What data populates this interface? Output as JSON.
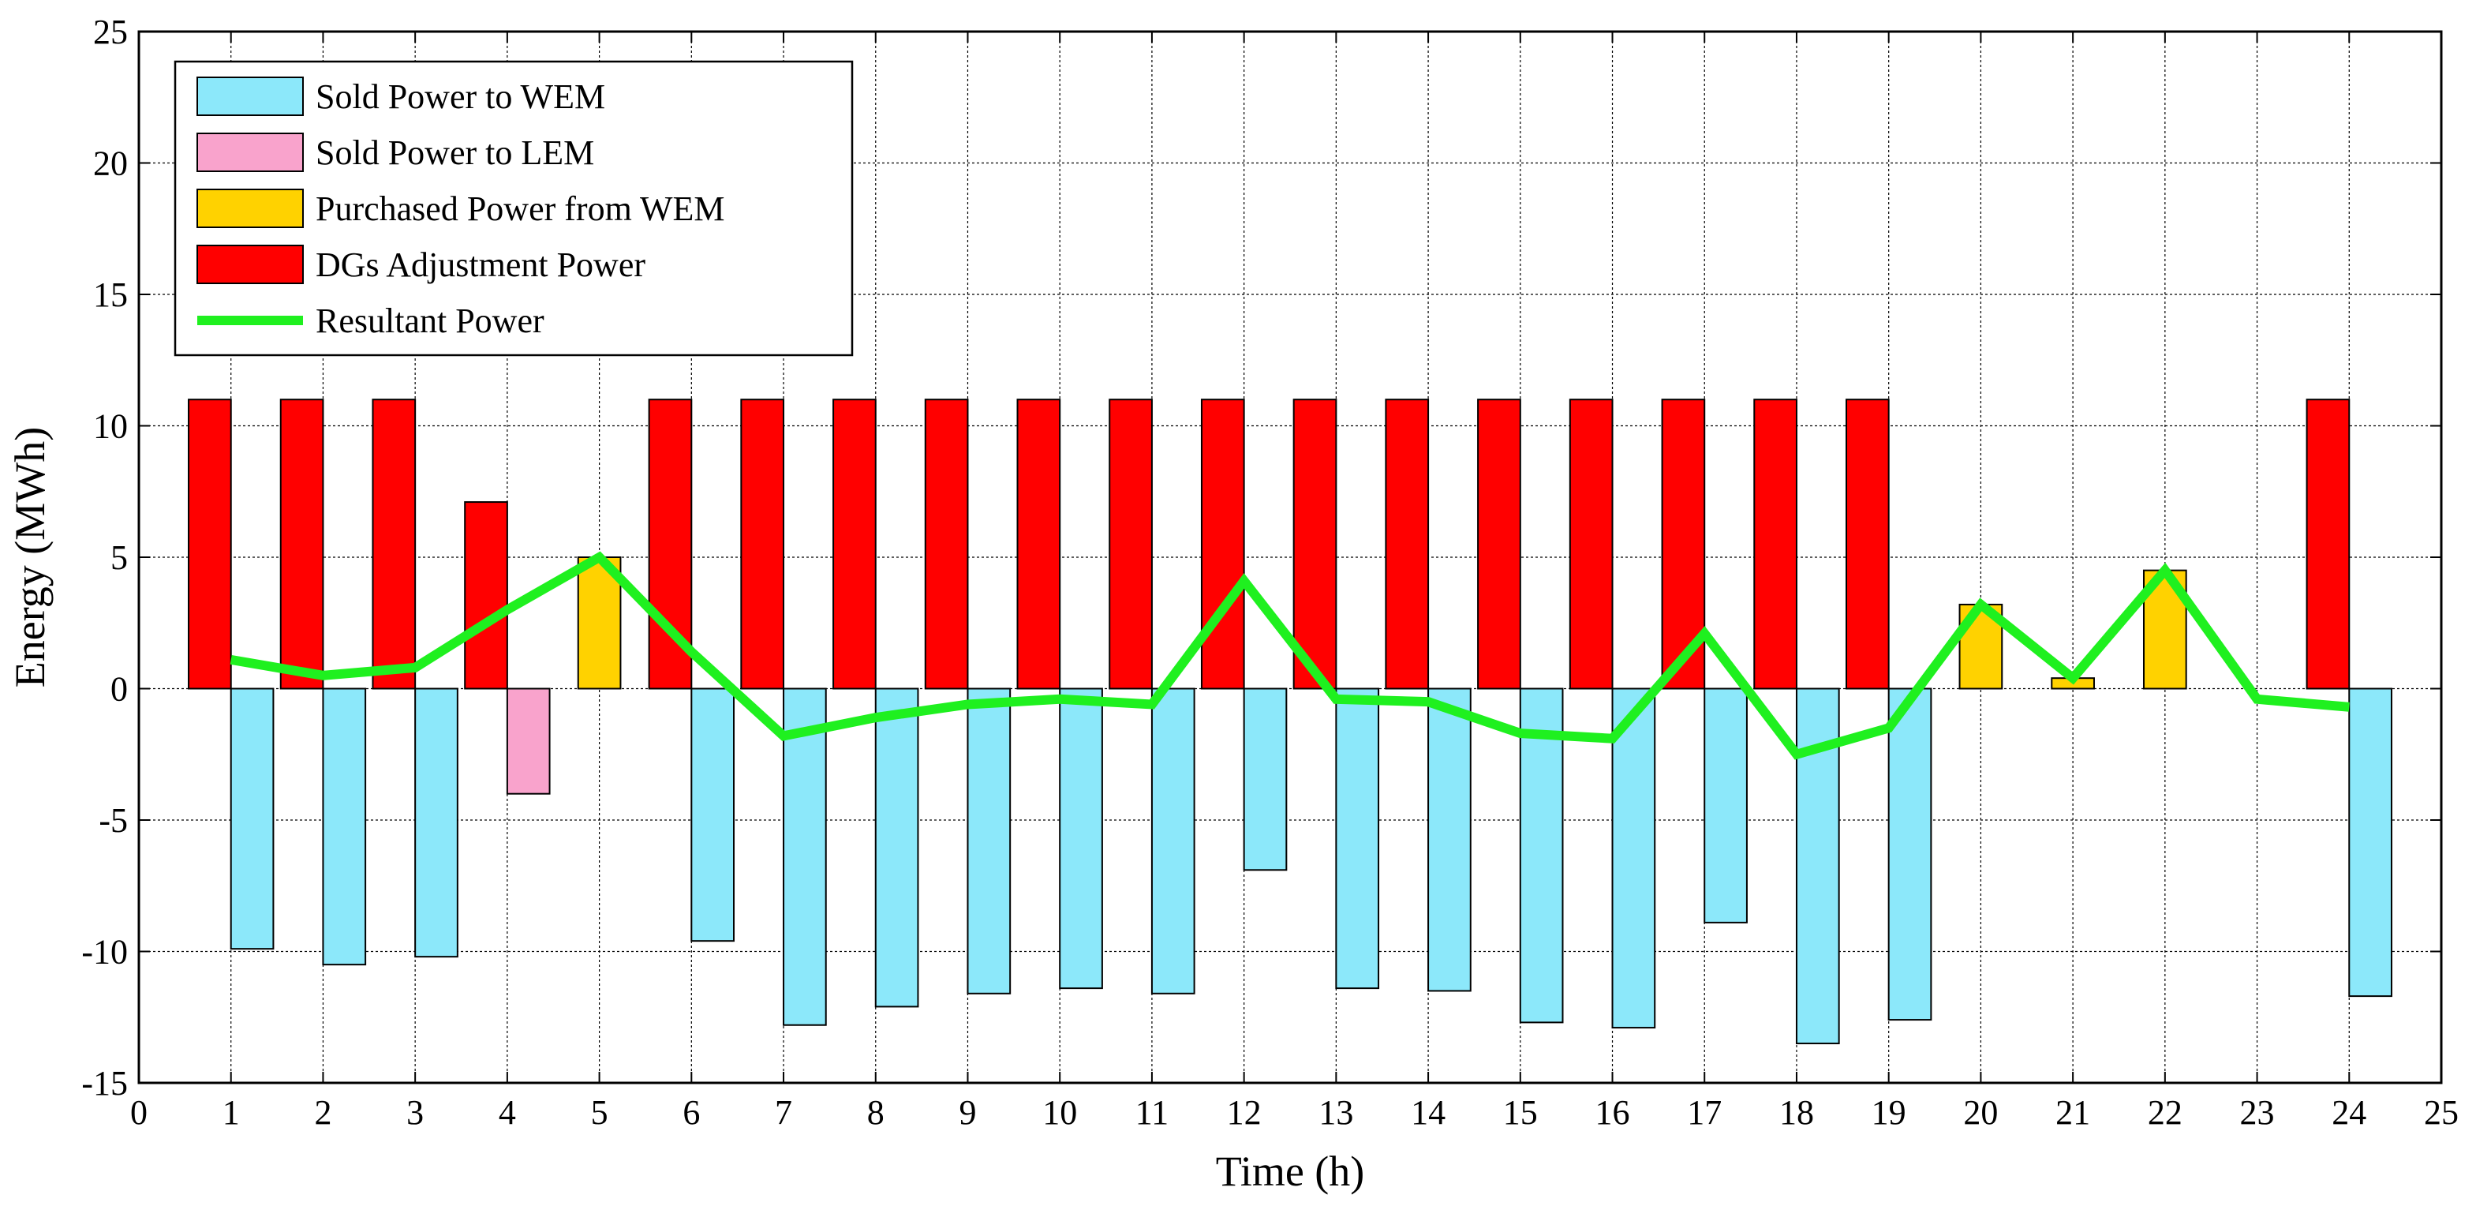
{
  "chart_data": {
    "type": "bar",
    "title": "",
    "xlabel": "Time (h)",
    "ylabel": "Energy (MWh)",
    "xlim": [
      0,
      25
    ],
    "ylim": [
      -15,
      25
    ],
    "xticks": [
      0,
      1,
      2,
      3,
      4,
      5,
      6,
      7,
      8,
      9,
      10,
      11,
      12,
      13,
      14,
      15,
      16,
      17,
      18,
      19,
      20,
      21,
      22,
      23,
      24,
      25
    ],
    "yticks": [
      -15,
      -10,
      -5,
      0,
      5,
      10,
      15,
      20,
      25
    ],
    "grid": true,
    "legend_position": "top-left",
    "hours": [
      1,
      2,
      3,
      4,
      5,
      6,
      7,
      8,
      9,
      10,
      11,
      12,
      13,
      14,
      15,
      16,
      17,
      18,
      19,
      20,
      21,
      22,
      23,
      24
    ],
    "series": [
      {
        "name": "Sold Power to WEM",
        "kind": "bar",
        "color": "#8ce8fa",
        "offset": "right",
        "values": [
          -9.9,
          -10.5,
          -10.2,
          0,
          0,
          -9.6,
          -12.8,
          -12.1,
          -11.6,
          -11.4,
          -11.6,
          -6.9,
          -11.4,
          -11.5,
          -12.7,
          -12.9,
          -8.9,
          -13.5,
          -12.6,
          0,
          0,
          0,
          0,
          -11.7
        ]
      },
      {
        "name": "Sold Power to LEM",
        "kind": "bar",
        "color": "#f9a3cc",
        "offset": "right",
        "values": [
          0,
          0,
          0,
          -4.0,
          0,
          0,
          0,
          0,
          0,
          0,
          0,
          0,
          0,
          0,
          0,
          0,
          0,
          0,
          0,
          0,
          0,
          0,
          0,
          0
        ]
      },
      {
        "name": "Purchased Power from WEM",
        "kind": "bar",
        "color": "#ffd200",
        "offset": "center",
        "values": [
          0,
          0,
          0,
          0,
          5.0,
          0,
          0,
          0,
          0,
          0,
          0,
          0,
          0,
          0,
          0,
          0,
          0,
          0,
          0,
          3.2,
          0.4,
          4.5,
          0,
          0
        ]
      },
      {
        "name": "DGs Adjustment Power",
        "kind": "bar",
        "color": "#ff0000",
        "offset": "left",
        "values": [
          11,
          11,
          11,
          7.1,
          0,
          11,
          11,
          11,
          11,
          11,
          11,
          11,
          11,
          11,
          11,
          11,
          11,
          11,
          11,
          0,
          0,
          0,
          0,
          11
        ]
      },
      {
        "name": "Resultant Power",
        "kind": "line",
        "color": "#1ff01f",
        "values": [
          1.1,
          0.5,
          0.8,
          3.0,
          5.0,
          1.4,
          -1.8,
          -1.1,
          -0.6,
          -0.4,
          -0.6,
          4.1,
          -0.4,
          -0.5,
          -1.7,
          -1.9,
          2.1,
          -2.5,
          -1.5,
          3.2,
          0.4,
          4.5,
          -0.4,
          -0.7
        ]
      }
    ]
  }
}
